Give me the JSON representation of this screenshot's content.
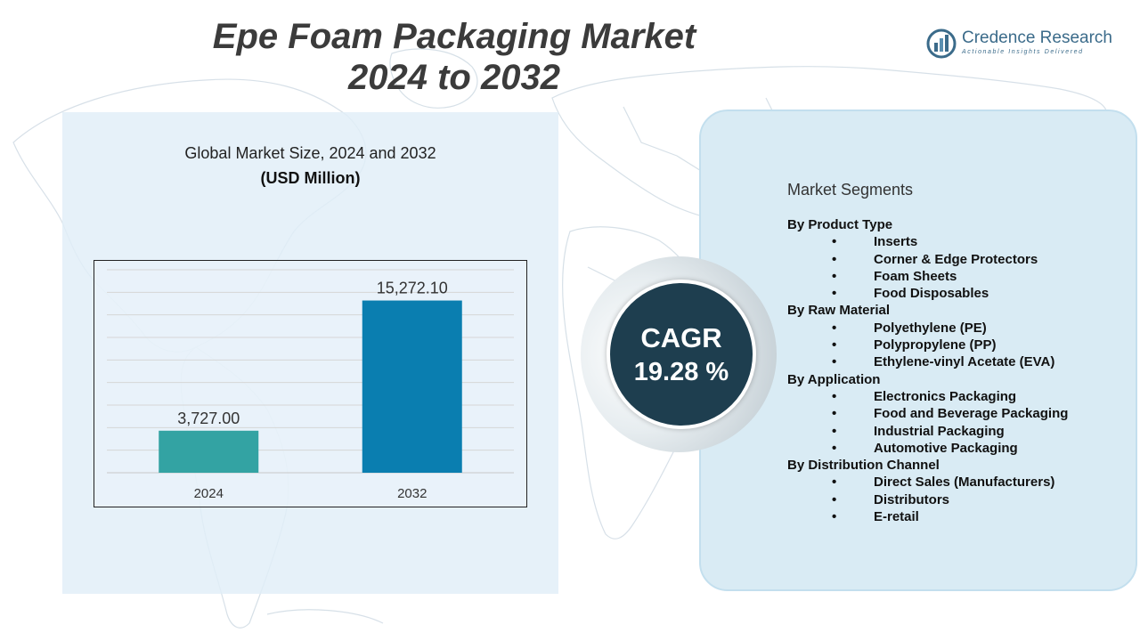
{
  "header": {
    "title_line1": "Epe Foam Packaging Market",
    "title_line2": "2024 to 2032"
  },
  "brand": {
    "name": "Credence Research",
    "tagline": "Actionable Insights Delivered"
  },
  "chart_panel": {
    "heading": "Global Market Size, 2024 and 2032",
    "unit": "(USD Million)"
  },
  "chart_data": {
    "type": "bar",
    "title": "Global Market Size, 2024 and 2032",
    "ylabel": "(USD Million)",
    "categories": [
      "2024",
      "2032"
    ],
    "values": [
      3727.0,
      15272.1
    ],
    "value_labels": [
      "3,727.00",
      "15,272.10"
    ],
    "colors": [
      "#33a3a3",
      "#0a7eb0"
    ],
    "ylim": [
      0,
      18000
    ],
    "grid": true,
    "legend": "none"
  },
  "cagr": {
    "label": "CAGR",
    "value": "19.28 %"
  },
  "segments": {
    "title": "Market Segments",
    "groups": [
      {
        "name": "By Product Type",
        "items": [
          "Inserts",
          "Corner & Edge Protectors",
          "Foam Sheets",
          "Food Disposables"
        ]
      },
      {
        "name": "By Raw Material",
        "items": [
          "Polyethylene (PE)",
          "Polypropylene (PP)",
          "Ethylene-vinyl Acetate (EVA)"
        ]
      },
      {
        "name": "By Application",
        "items": [
          "Electronics Packaging",
          "Food and Beverage Packaging",
          "Industrial Packaging",
          "Automotive Packaging"
        ]
      },
      {
        "name": "By Distribution Channel",
        "items": [
          "Direct Sales (Manufacturers)",
          "Distributors",
          "E-retail"
        ]
      }
    ]
  },
  "icons": {
    "brand_logo": "credence-logo-icon",
    "background": "world-map-icon",
    "bullet": "•"
  }
}
